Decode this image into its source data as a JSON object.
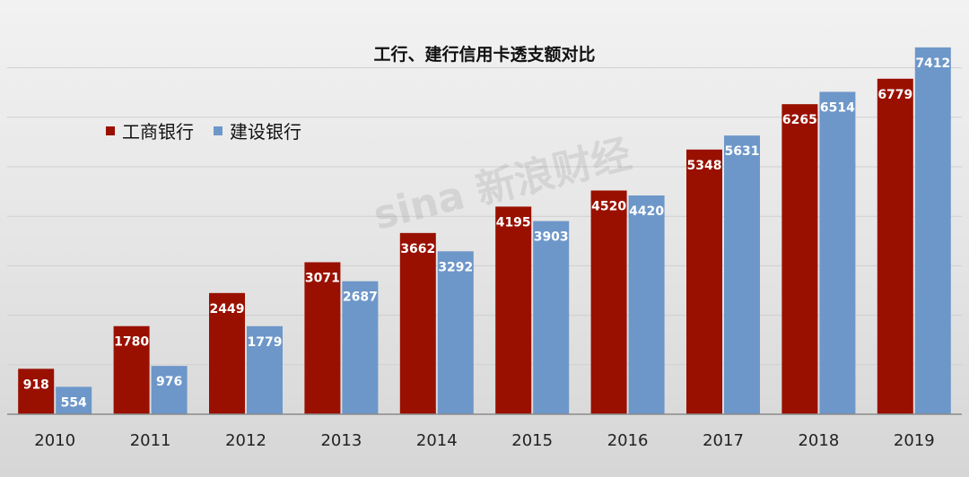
{
  "chart_data": {
    "type": "bar",
    "title": "工行、建行信用卡透支额对比",
    "categories": [
      "2010",
      "2011",
      "2012",
      "2013",
      "2014",
      "2015",
      "2016",
      "2017",
      "2018",
      "2019"
    ],
    "series": [
      {
        "name": "工商银行",
        "color": "#991000",
        "values": [
          918,
          1780,
          2449,
          3071,
          3662,
          4195,
          4520,
          5348,
          6265,
          6779
        ]
      },
      {
        "name": "建设银行",
        "color": "#6d97c9",
        "values": [
          554,
          976,
          1779,
          2687,
          3292,
          3903,
          4420,
          5631,
          6514,
          7412
        ]
      }
    ],
    "ylim": [
      0,
      7500
    ],
    "grid": true,
    "legend_position": "top-left",
    "xlabel": "",
    "ylabel": ""
  },
  "watermark": {
    "text": "sina 新浪财经"
  }
}
